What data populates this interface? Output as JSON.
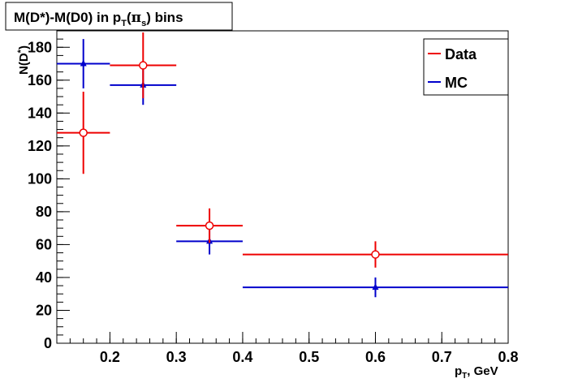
{
  "chart_data": {
    "type": "scatter",
    "title_main": "M(D*)-M(D0) in p",
    "title_sub": "T",
    "title_paren_open": "(",
    "title_pi": "π",
    "title_pi_sub": "s",
    "title_tail": ") bins",
    "ylabel_main": "N(D",
    "ylabel_sup": "*",
    "ylabel_close": ")",
    "xlabel_main": "p",
    "xlabel_sub": "T",
    "xlabel_tail": ", GeV",
    "xlim": [
      0.12,
      0.8
    ],
    "ylim": [
      0,
      190
    ],
    "x_ticks": [
      0.2,
      0.3,
      0.4,
      0.5,
      0.6,
      0.7,
      0.8
    ],
    "x_tick_labels": [
      "0.2",
      "0.3",
      "0.4",
      "0.5",
      "0.6",
      "0.7",
      "0.8"
    ],
    "y_ticks": [
      0,
      20,
      40,
      60,
      80,
      100,
      120,
      140,
      160,
      180
    ],
    "y_tick_labels": [
      "0",
      "20",
      "40",
      "60",
      "80",
      "100",
      "120",
      "140",
      "160",
      "180"
    ],
    "legend_position": "top-right",
    "grid": false,
    "series": [
      {
        "name": "Data",
        "color": "#ee0000",
        "marker": "open-circle",
        "points": [
          {
            "x": 0.16,
            "xlo": 0.12,
            "xhi": 0.2,
            "y": 128,
            "ylo": 103,
            "yhi": 153
          },
          {
            "x": 0.25,
            "xlo": 0.2,
            "xhi": 0.3,
            "y": 169,
            "ylo": 149,
            "yhi": 189
          },
          {
            "x": 0.35,
            "xlo": 0.3,
            "xhi": 0.4,
            "y": 71.5,
            "ylo": 61,
            "yhi": 82
          },
          {
            "x": 0.6,
            "xlo": 0.4,
            "xhi": 0.8,
            "y": 54,
            "ylo": 46,
            "yhi": 62
          }
        ]
      },
      {
        "name": "MC",
        "color": "#0000cc",
        "marker": "filled-triangle",
        "points": [
          {
            "x": 0.16,
            "xlo": 0.12,
            "xhi": 0.2,
            "y": 170,
            "ylo": 155,
            "yhi": 185
          },
          {
            "x": 0.25,
            "xlo": 0.2,
            "xhi": 0.3,
            "y": 157,
            "ylo": 145,
            "yhi": 170
          },
          {
            "x": 0.35,
            "xlo": 0.3,
            "xhi": 0.4,
            "y": 62,
            "ylo": 54,
            "yhi": 70
          },
          {
            "x": 0.6,
            "xlo": 0.4,
            "xhi": 0.8,
            "y": 34,
            "ylo": 28,
            "yhi": 40
          }
        ]
      }
    ]
  }
}
